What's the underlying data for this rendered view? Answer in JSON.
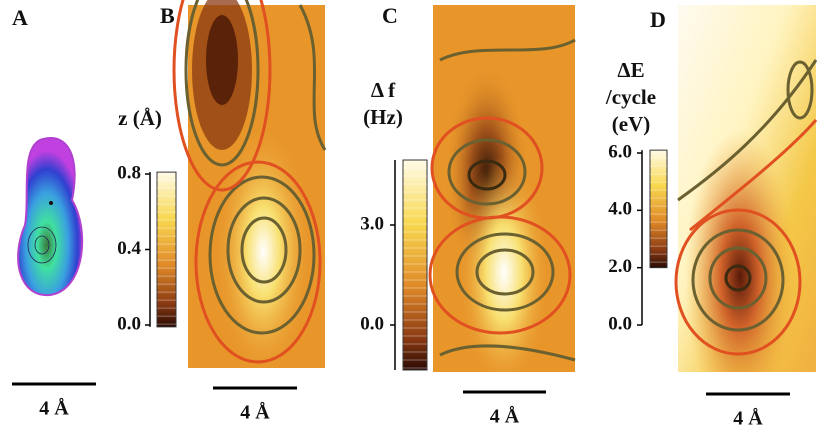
{
  "panels": [
    {
      "label": "A",
      "scale_bar": "4 Å"
    },
    {
      "label": "B",
      "colorbar": {
        "title": [
          "z (Å)"
        ],
        "lim": [
          0,
          0.8
        ],
        "bar": [
          -0.01,
          0.81
        ],
        "ticks": [
          {
            "value": 0,
            "label": "0.0"
          },
          0.4,
          0.8
        ]
      },
      "scale_bar": "4 Å"
    },
    {
      "label": "C",
      "colorbar": {
        "title": [
          "Δ f",
          "(Hz)"
        ],
        "lim": [
          0,
          3
        ],
        "bar": [
          -1.35,
          4.95
        ],
        "ticks": [
          {
            "value": 0,
            "label": "0.0"
          },
          {
            "value": 3,
            "label": "3.0"
          }
        ]
      },
      "scale_bar": "4 Å"
    },
    {
      "label": "D",
      "colorbar": {
        "title": [
          "ΔE",
          "/cycle",
          "(eV)"
        ],
        "lim": [
          0,
          6
        ],
        "bar": [
          2.0,
          6.1
        ],
        "ticks": [
          {
            "value": 0,
            "label": "0.0"
          },
          {
            "value": 2,
            "label": "2.0"
          },
          {
            "value": 4,
            "label": "4.0"
          },
          {
            "value": 6,
            "label": "6.0"
          }
        ]
      },
      "scale_bar": "4 Å"
    }
  ]
}
